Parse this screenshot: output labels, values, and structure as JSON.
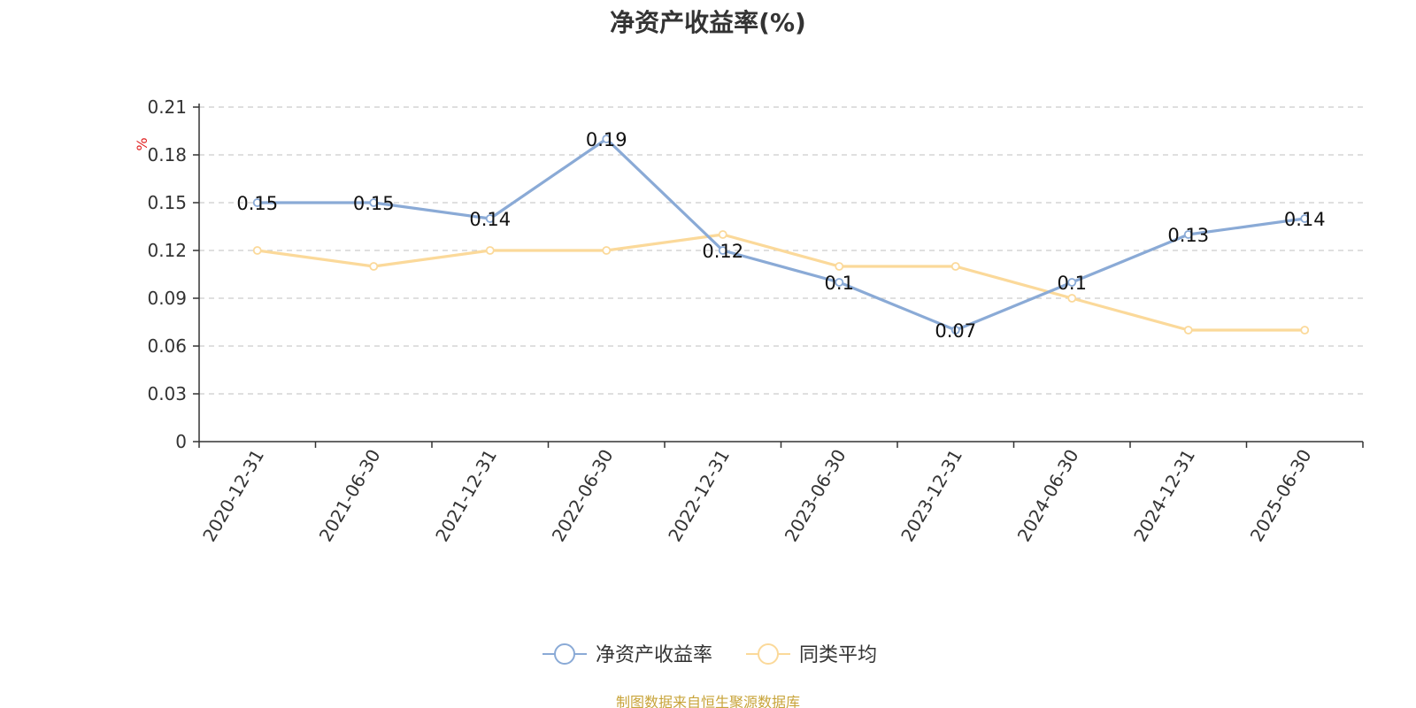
{
  "chart_data": {
    "type": "line",
    "title": "净资产收益率(%)",
    "unit": "%",
    "categories": [
      "2020-12-31",
      "2021-06-30",
      "2021-12-31",
      "2022-06-30",
      "2022-12-31",
      "2023-06-30",
      "2023-12-31",
      "2024-06-30",
      "2024-12-31",
      "2025-06-30"
    ],
    "series": [
      {
        "name": "净资产收益率",
        "color": "#8aaad6",
        "values": [
          0.15,
          0.15,
          0.14,
          0.19,
          0.12,
          0.1,
          0.07,
          0.1,
          0.13,
          0.14
        ],
        "labels": [
          "0.15",
          "0.15",
          "0.14",
          "0.19",
          "0.12",
          "0.1",
          "0.07",
          "0.1",
          "0.13",
          "0.14"
        ],
        "show_labels": true
      },
      {
        "name": "同类平均",
        "color": "#fbd99a",
        "values": [
          0.12,
          0.11,
          0.12,
          0.12,
          0.13,
          0.11,
          0.11,
          0.09,
          0.07,
          0.07
        ],
        "show_labels": false
      }
    ],
    "y_ticks": [
      "0",
      "0.03",
      "0.06",
      "0.09",
      "0.12",
      "0.15",
      "0.18",
      "0.21"
    ],
    "ylim": [
      0,
      0.21
    ],
    "grid": true,
    "legend_position": "bottom-center"
  },
  "source_note": "制图数据来自恒生聚源数据库"
}
